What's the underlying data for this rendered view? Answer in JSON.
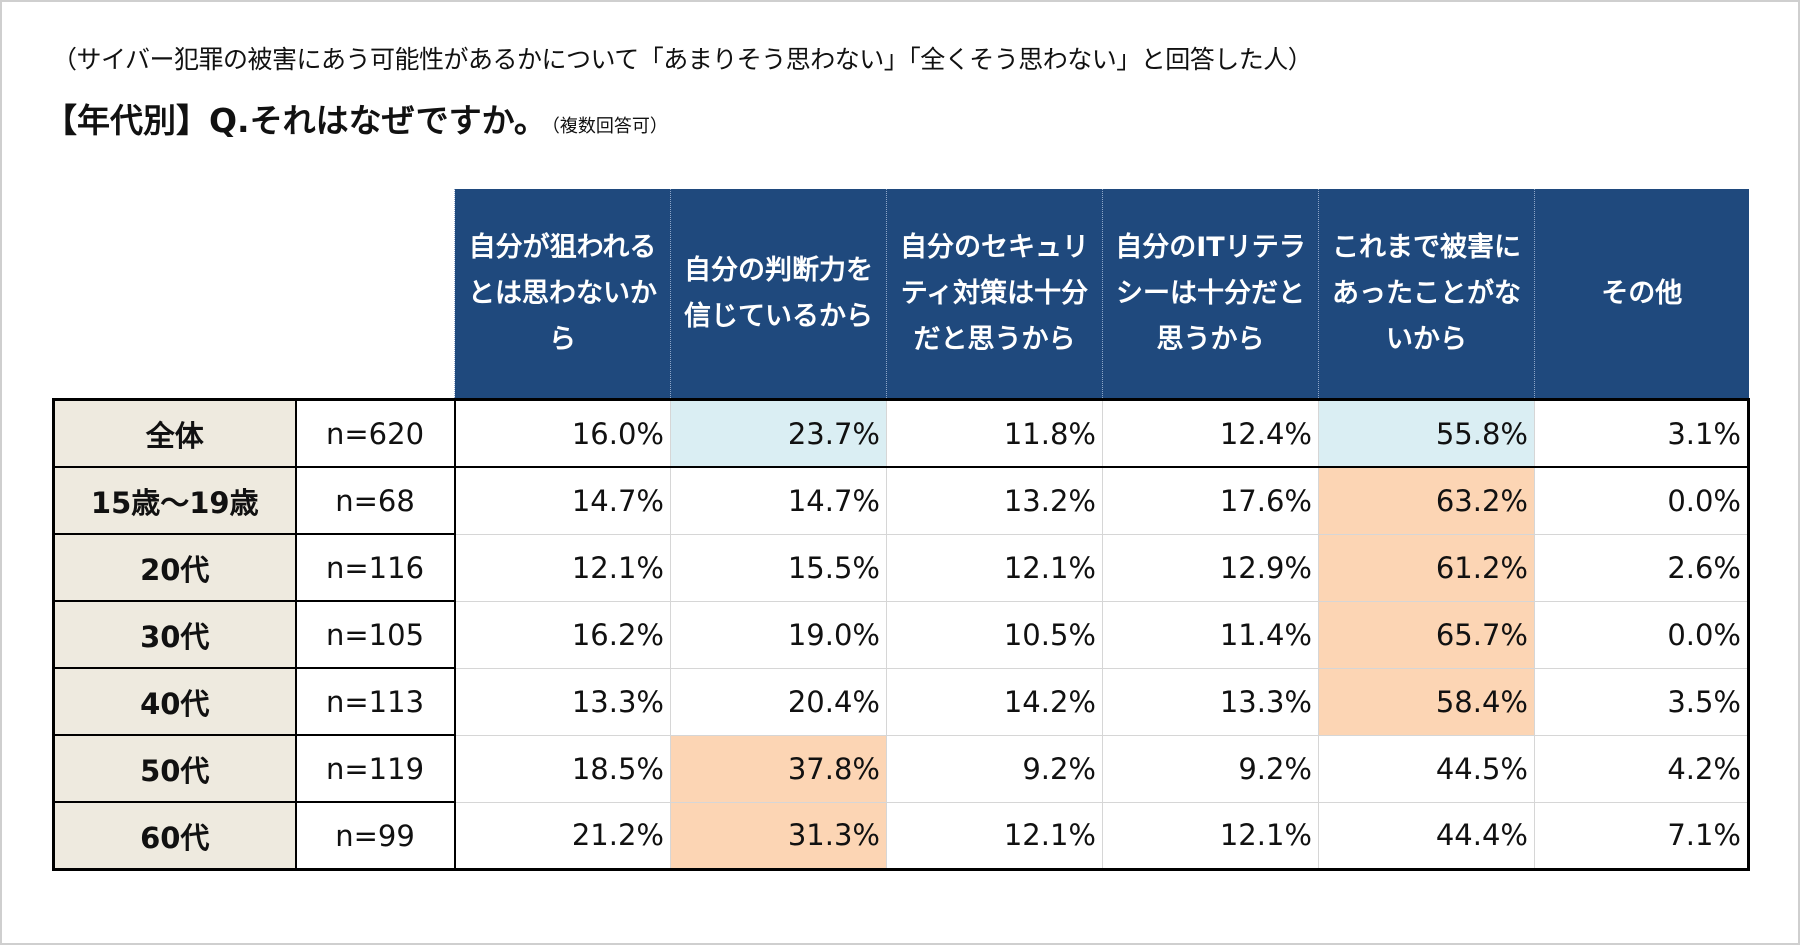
{
  "subtitle": "（サイバー犯罪の被害にあう可能性があるかについて「あまりそう思わない」「全くそう思わない」と回答した人）",
  "title": "【年代別】Q.それはなぜですか。",
  "title_note": "（複数回答可）",
  "colors": {
    "header_bg": "#1f497d",
    "label_bg": "#eeeadf",
    "highlight_total": "#daeef3",
    "highlight_group": "#fcd5b4"
  },
  "columns": [
    "自分が狙われるとは思わないから",
    "自分の判断力を信じているから",
    "自分のセキュリティ対策は十分だと思うから",
    "自分のITリテラシーは十分だと思うから",
    "これまで被害にあったことがないから",
    "その他"
  ],
  "rows": [
    {
      "label": "全体",
      "n": "n=620",
      "values": [
        "16.0%",
        "23.7%",
        "11.8%",
        "12.4%",
        "55.8%",
        "3.1%"
      ],
      "hl": [
        null,
        "blue",
        null,
        null,
        "blue",
        null
      ]
    },
    {
      "label": "15歳～19歳",
      "n": "n=68",
      "values": [
        "14.7%",
        "14.7%",
        "13.2%",
        "17.6%",
        "63.2%",
        "0.0%"
      ],
      "hl": [
        null,
        null,
        null,
        null,
        "orange",
        null
      ]
    },
    {
      "label": "20代",
      "n": "n=116",
      "values": [
        "12.1%",
        "15.5%",
        "12.1%",
        "12.9%",
        "61.2%",
        "2.6%"
      ],
      "hl": [
        null,
        null,
        null,
        null,
        "orange",
        null
      ]
    },
    {
      "label": "30代",
      "n": "n=105",
      "values": [
        "16.2%",
        "19.0%",
        "10.5%",
        "11.4%",
        "65.7%",
        "0.0%"
      ],
      "hl": [
        null,
        null,
        null,
        null,
        "orange",
        null
      ]
    },
    {
      "label": "40代",
      "n": "n=113",
      "values": [
        "13.3%",
        "20.4%",
        "14.2%",
        "13.3%",
        "58.4%",
        "3.5%"
      ],
      "hl": [
        null,
        null,
        null,
        null,
        "orange",
        null
      ]
    },
    {
      "label": "50代",
      "n": "n=119",
      "values": [
        "18.5%",
        "37.8%",
        "9.2%",
        "9.2%",
        "44.5%",
        "4.2%"
      ],
      "hl": [
        null,
        "orange",
        null,
        null,
        null,
        null
      ]
    },
    {
      "label": "60代",
      "n": "n=99",
      "values": [
        "21.2%",
        "31.3%",
        "12.1%",
        "12.1%",
        "44.4%",
        "7.1%"
      ],
      "hl": [
        null,
        "orange",
        null,
        null,
        null,
        null
      ]
    }
  ]
}
